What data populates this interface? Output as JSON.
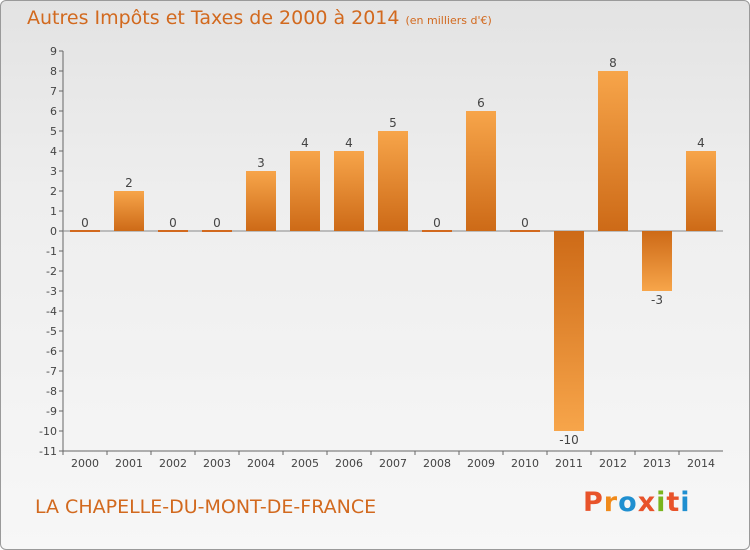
{
  "header": {
    "title": "Autres Impôts et Taxes de 2000 à 2014",
    "unit": "(en milliers d'€)"
  },
  "footer": {
    "commune": "LA CHAPELLE-DU-MONT-DE-FRANCE",
    "logo": "Proxiti"
  },
  "colors": {
    "bar_light": "#f7a54a",
    "bar_dark": "#cd6a17",
    "zero_bar": "#d2691e",
    "title": "#d2691e",
    "logo": [
      "#e8532a",
      "#f08a1a",
      "#1f8fd0",
      "#e8532a",
      "#7ab51d",
      "#e8532a",
      "#1f8fd0"
    ]
  },
  "chart_data": {
    "type": "bar",
    "title": "Autres Impôts et Taxes de 2000 à 2014",
    "xlabel": "",
    "ylabel": "",
    "categories": [
      "2000",
      "2001",
      "2002",
      "2003",
      "2004",
      "2005",
      "2006",
      "2007",
      "2008",
      "2009",
      "2010",
      "2011",
      "2012",
      "2013",
      "2014"
    ],
    "values": [
      0,
      2,
      0,
      0,
      3,
      4,
      4,
      5,
      0,
      6,
      0,
      -10,
      8,
      -3,
      4
    ],
    "ylim": [
      -11,
      9
    ],
    "yticks": [
      9,
      8,
      7,
      6,
      5,
      4,
      3,
      2,
      1,
      0,
      -1,
      -2,
      -3,
      -4,
      -5,
      -6,
      -7,
      -8,
      -9,
      -10,
      -11
    ],
    "grid": false,
    "legend": "none"
  }
}
